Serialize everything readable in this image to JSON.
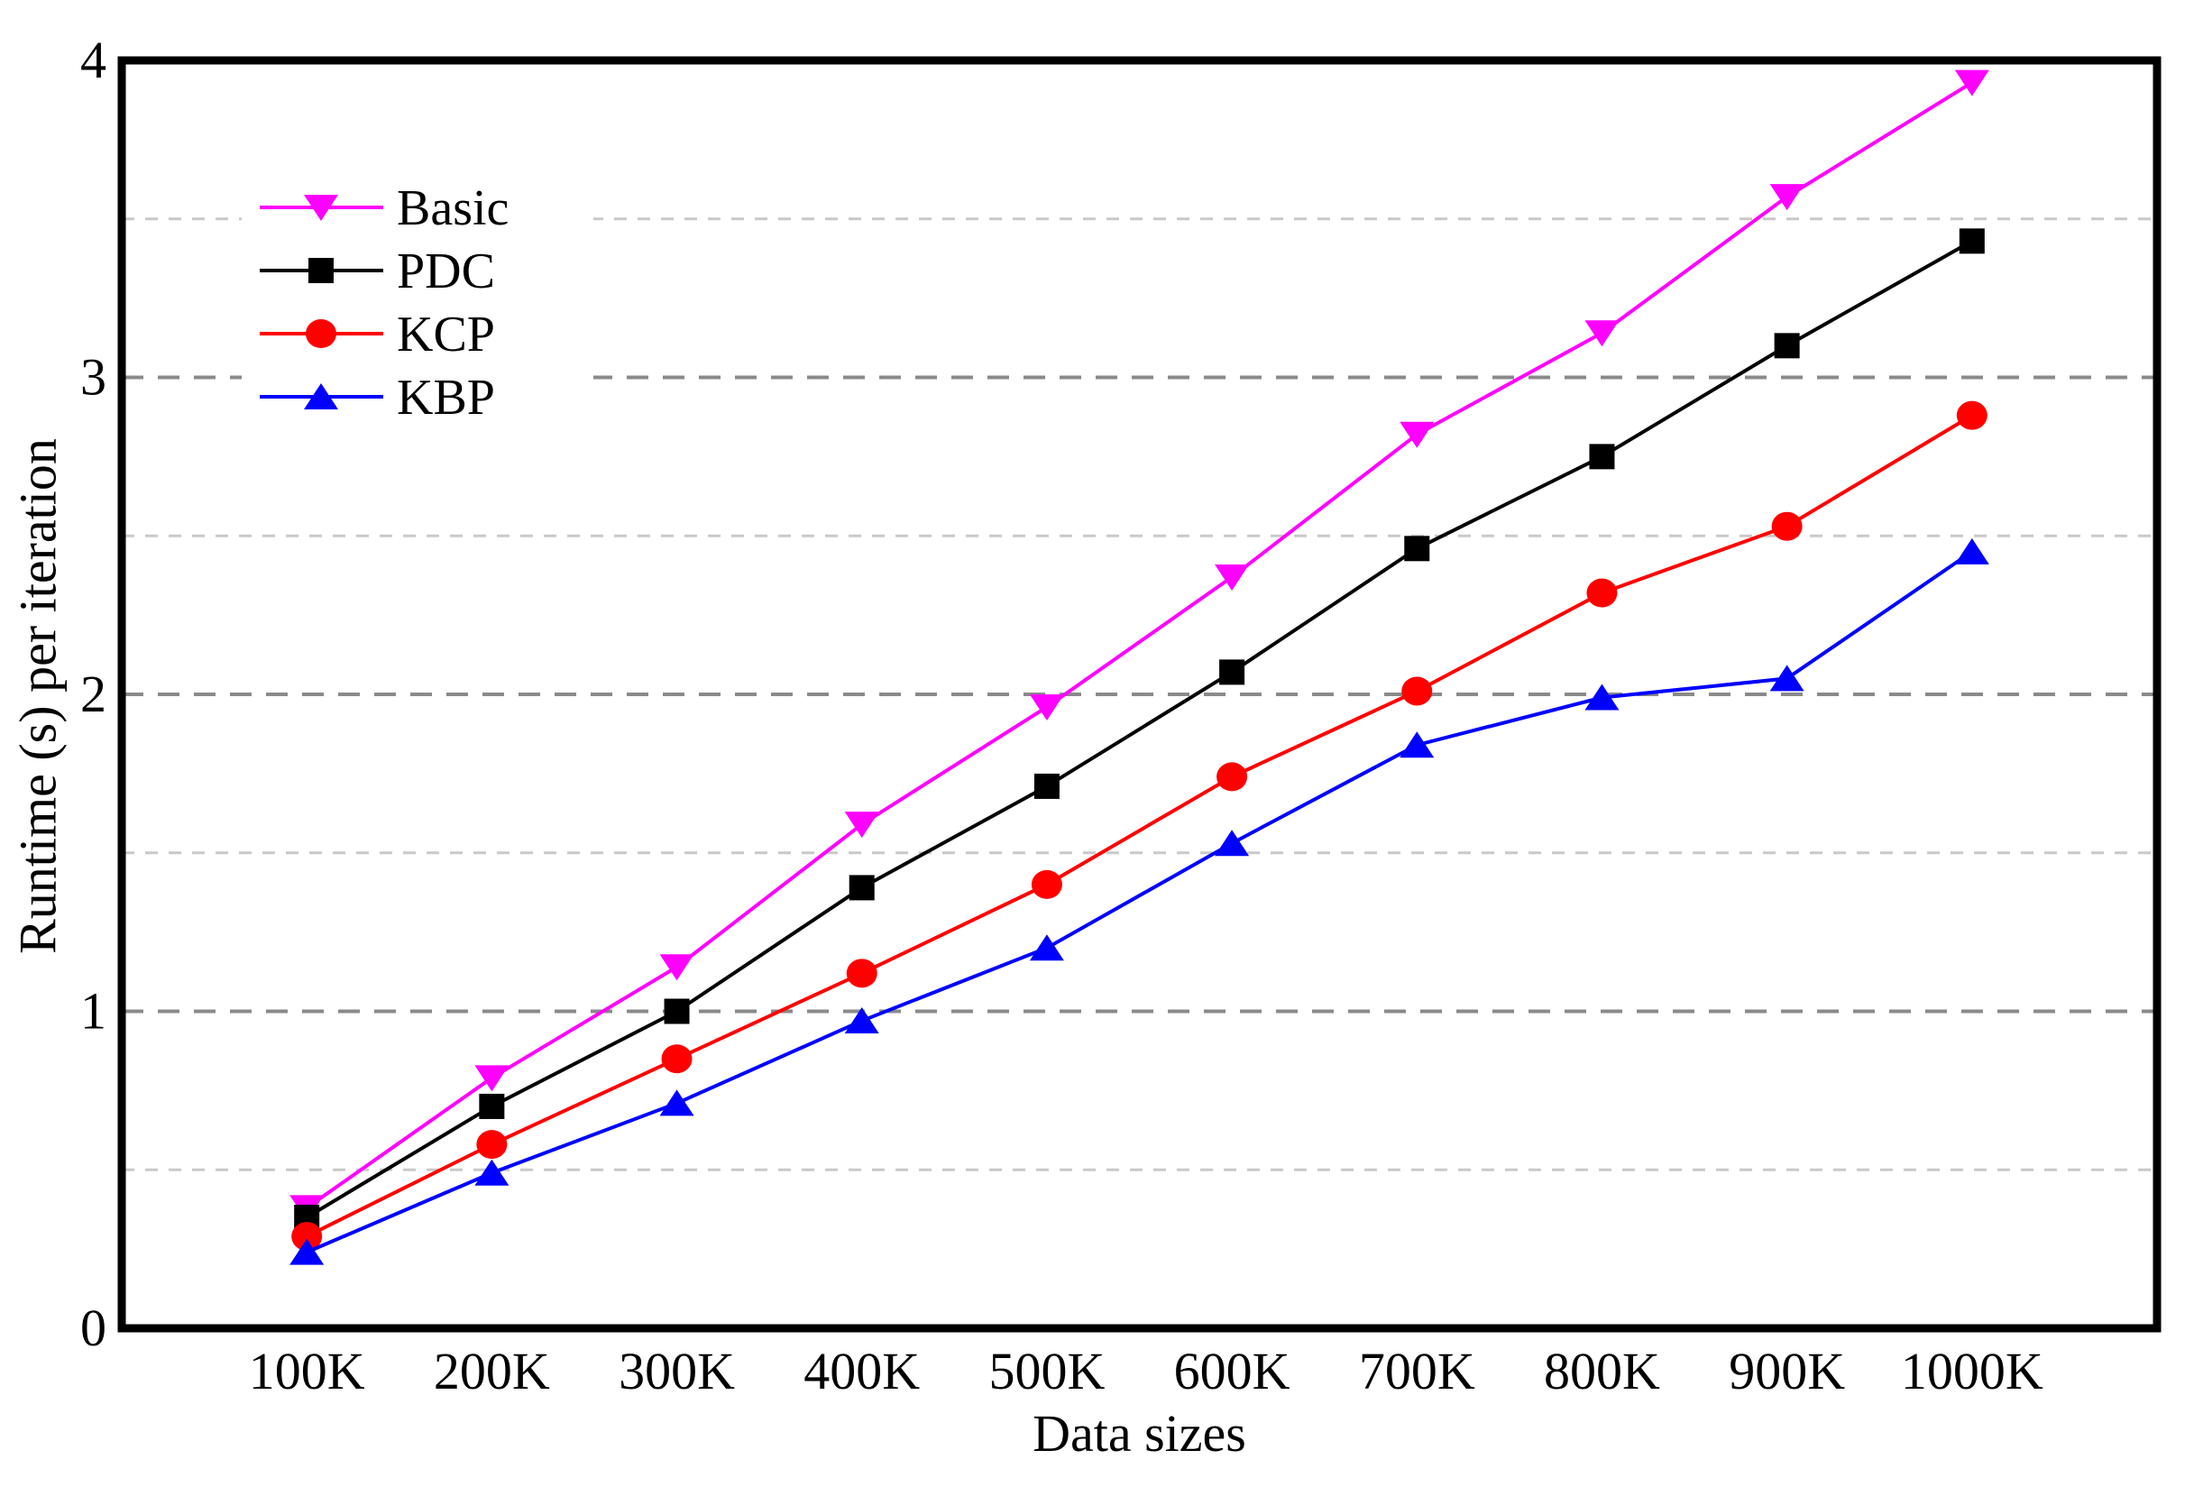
{
  "chart_data": {
    "type": "line",
    "title": "",
    "xlabel": "Data sizes",
    "ylabel": "Runtime (s) per iteration",
    "categories": [
      "100K",
      "200K",
      "300K",
      "400K",
      "500K",
      "600K",
      "700K",
      "800K",
      "900K",
      "1000K"
    ],
    "series": [
      {
        "name": "Basic",
        "color": "#FF00FF",
        "marker": "triangle-down",
        "values": [
          0.38,
          0.79,
          1.14,
          1.59,
          1.96,
          2.37,
          2.82,
          3.14,
          3.57,
          3.93
        ]
      },
      {
        "name": "PDC",
        "color": "#000000",
        "marker": "square",
        "values": [
          0.35,
          0.7,
          1.0,
          1.39,
          1.71,
          2.07,
          2.46,
          2.75,
          3.1,
          3.43
        ]
      },
      {
        "name": "KCP",
        "color": "#FF0000",
        "marker": "circle",
        "values": [
          0.29,
          0.58,
          0.85,
          1.12,
          1.4,
          1.74,
          2.01,
          2.32,
          2.53,
          2.88
        ]
      },
      {
        "name": "KBP",
        "color": "#0000FF",
        "marker": "triangle-up",
        "values": [
          0.24,
          0.49,
          0.71,
          0.97,
          1.2,
          1.53,
          1.84,
          1.99,
          2.05,
          2.45
        ]
      }
    ],
    "ylim": [
      0,
      4
    ],
    "yticks": [
      0,
      1,
      2,
      3,
      4
    ],
    "grid": {
      "style": "dashed",
      "major_every": 1,
      "minor_every": 0.5,
      "major_color": "#8A8A8A",
      "minor_color": "#C9C9C9"
    },
    "legend_position": "top-left-inside",
    "frame_color": "#000000",
    "background_color": "#FFFFFF"
  }
}
